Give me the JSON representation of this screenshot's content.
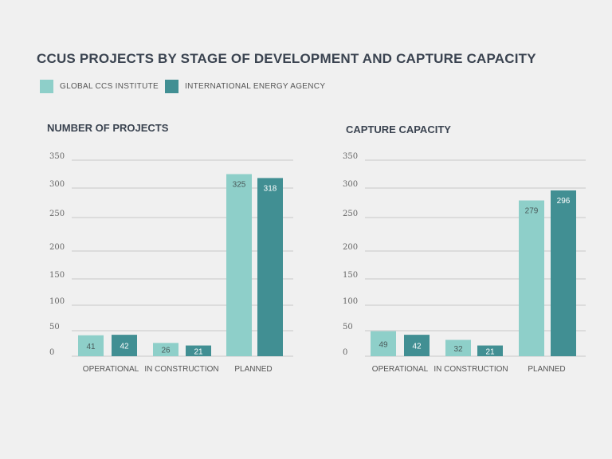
{
  "title": "CCUS PROJECTS BY STAGE OF DEVELOPMENT AND CAPTURE CAPACITY",
  "legend": [
    {
      "label": "GLOBAL CCS INSTITUTE",
      "color": "#8ecfc9"
    },
    {
      "label": "INTERNATIONAL ENERGY AGENCY",
      "color": "#418f93"
    }
  ],
  "chart_data": [
    {
      "type": "bar",
      "title": "NUMBER OF PROJECTS",
      "categories": [
        "OPERATIONAL",
        "IN CONSTRUCTION",
        "PLANNED"
      ],
      "series": [
        {
          "name": "GLOBAL CCS INSTITUTE",
          "values": [
            41,
            26,
            325
          ]
        },
        {
          "name": "INTERNATIONAL ENERGY AGENCY",
          "values": [
            42,
            21,
            318
          ]
        }
      ],
      "yticks": [
        "0",
        "50",
        "100",
        "150",
        "200",
        "250",
        "300",
        "350"
      ],
      "ylim": [
        0,
        350
      ],
      "grid": true
    },
    {
      "type": "bar",
      "title": "CAPTURE CAPACITY",
      "categories": [
        "OPERATIONAL",
        "IN CONSTRUCTION",
        "PLANNED"
      ],
      "series": [
        {
          "name": "GLOBAL CCS INSTITUTE",
          "values": [
            49,
            32,
            279
          ]
        },
        {
          "name": "INTERNATIONAL ENERGY AGENCY",
          "values": [
            42,
            21,
            296
          ]
        }
      ],
      "yticks": [
        "0",
        "50",
        "100",
        "150",
        "200",
        "250",
        "300",
        "350"
      ],
      "ylim": [
        0,
        350
      ],
      "grid": true
    }
  ]
}
